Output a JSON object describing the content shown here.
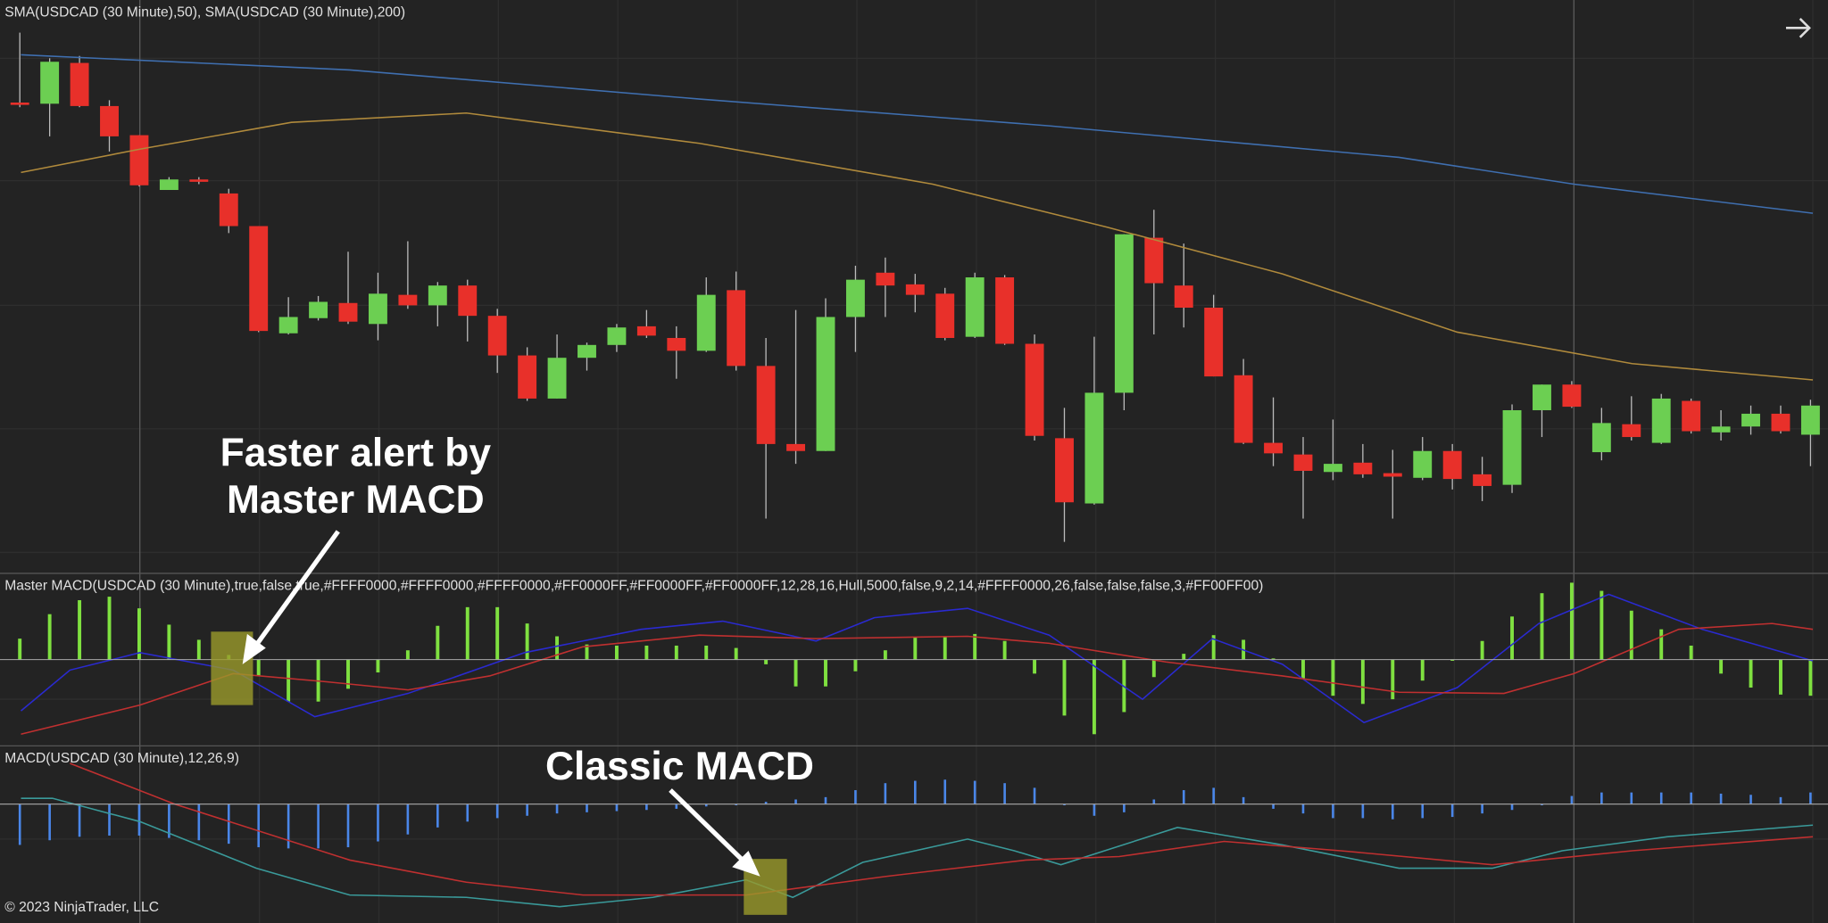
{
  "panels": [
    {
      "label": "SMA(USDCAD (30 Minute),50), SMA(USDCAD (30 Minute),200)"
    },
    {
      "label": "Master MACD(USDCAD (30 Minute),true,false,true,#FFFF0000,#FFFF0000,#FFFF0000,#FF0000FF,#FF0000FF,#FF0000FF,12,28,16,Hull,5000,false,9,2,14,#FFFF0000,26,false,false,false,3,#FF00FF00)"
    },
    {
      "label": "MACD(USDCAD (30 Minute),12,26,9)"
    }
  ],
  "annotations": [
    {
      "lines": [
        "Faster alert by",
        "Master MACD"
      ]
    },
    {
      "lines": [
        "Classic MACD"
      ]
    }
  ],
  "footer": {
    "copyright": "© 2023 NinjaTrader, LLC"
  }
}
